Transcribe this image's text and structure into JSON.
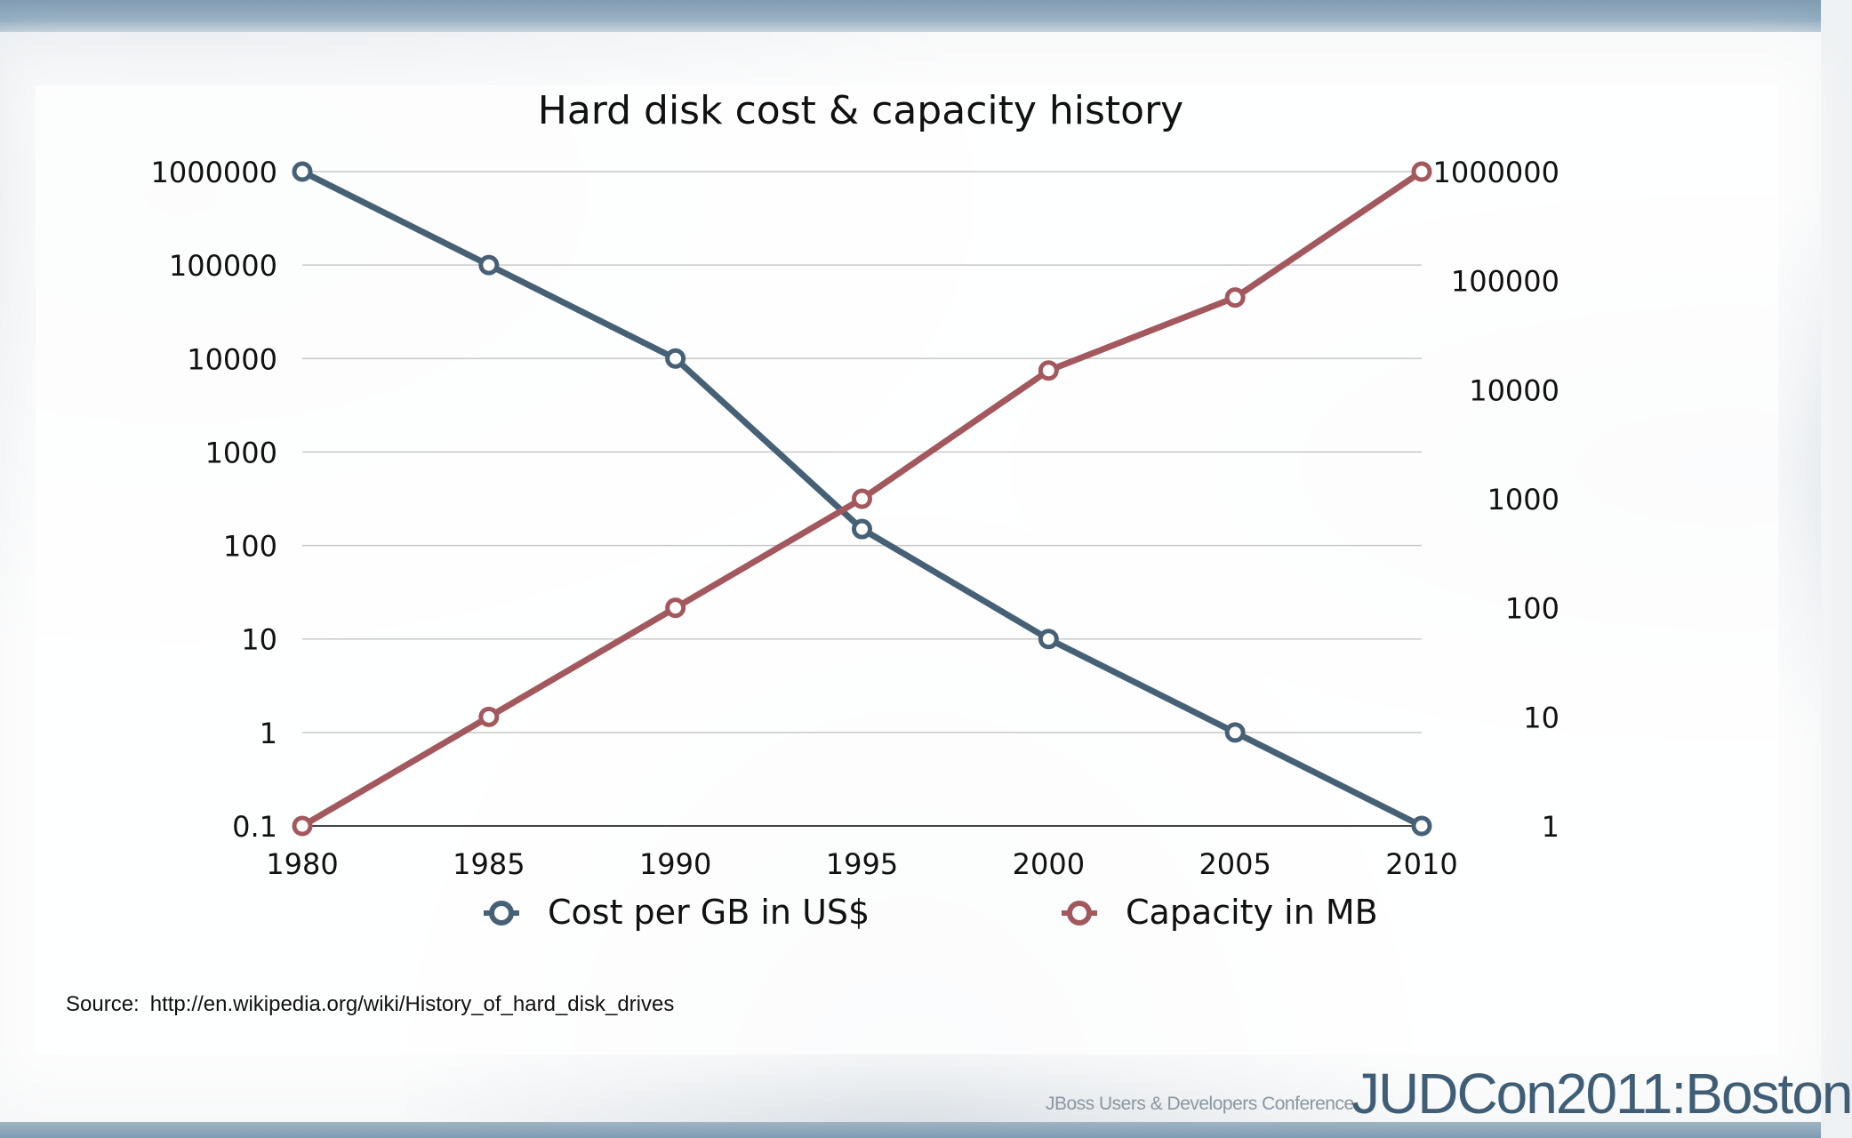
{
  "slide": {
    "source_label": "Source:",
    "source_url": "http://en.wikipedia.org/wiki/History_of_hard_disk_drives",
    "conference_subtitle": "JBoss Users & Developers Conference",
    "logo_text": "JUDCon2011:Boston"
  },
  "colors": {
    "cost_series": "#466176",
    "capacity_series": "#a3585d",
    "grid": "#c8c8c8",
    "text": "#111111"
  },
  "chart_data": {
    "type": "line",
    "title": "Hard disk cost & capacity history",
    "x": [
      1980,
      1985,
      1990,
      1995,
      2000,
      2005,
      2010
    ],
    "x_tick_labels": [
      "1980",
      "1985",
      "1990",
      "1995",
      "2000",
      "2005",
      "2010"
    ],
    "left_axis": {
      "scale": "log",
      "ylim": [
        0.1,
        1000000
      ],
      "tick_labels": [
        "0.1",
        "1",
        "10",
        "100",
        "1000",
        "10000",
        "100000",
        "1000000"
      ],
      "tick_values": [
        0.1,
        1,
        10,
        100,
        1000,
        10000,
        100000,
        1000000
      ]
    },
    "right_axis": {
      "scale": "log",
      "ylim": [
        1,
        1000000
      ],
      "tick_labels": [
        "1",
        "10",
        "100",
        "1000",
        "10000",
        "100000",
        "1000000"
      ],
      "tick_values": [
        1,
        10,
        100,
        1000,
        10000,
        100000,
        1000000
      ]
    },
    "series": [
      {
        "name": "Cost per GB in US$",
        "axis": "left",
        "color": "#466176",
        "values": [
          1000000,
          100000,
          10000,
          150,
          10,
          1,
          0.1
        ]
      },
      {
        "name": "Capacity in MB",
        "axis": "right",
        "color": "#a3585d",
        "values": [
          1,
          10,
          100,
          1000,
          15000,
          70000,
          1000000
        ]
      }
    ],
    "grid": true,
    "legend_position": "bottom"
  }
}
